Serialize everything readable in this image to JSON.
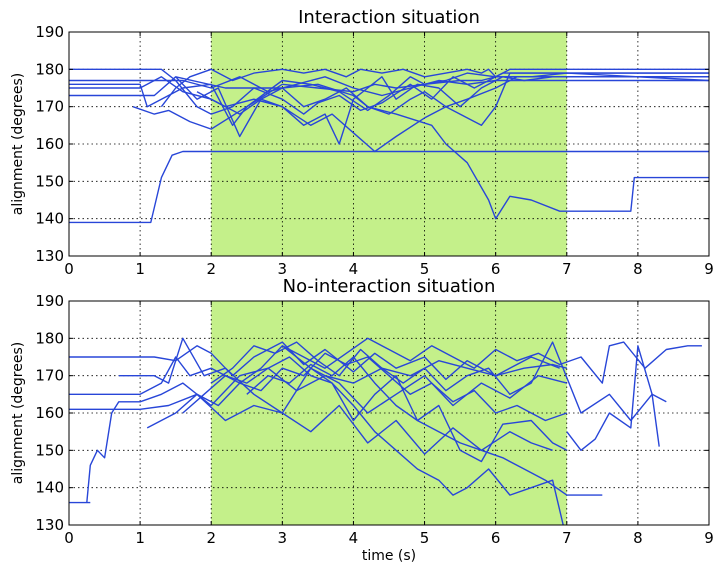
{
  "colors": {
    "band": "#c4f08a",
    "line": "#2846d8"
  },
  "chart_data": [
    {
      "type": "line",
      "title": "Interaction situation",
      "xlabel": "",
      "ylabel": "alignment (degrees)",
      "xlim": [
        0,
        9
      ],
      "ylim": [
        130,
        190
      ],
      "xticks": [
        0,
        1,
        2,
        3,
        4,
        5,
        6,
        7,
        8,
        9
      ],
      "yticks": [
        130,
        140,
        150,
        160,
        170,
        180,
        190
      ],
      "grid": true,
      "shaded_region": [
        2,
        7
      ],
      "series": [
        {
          "x": [
            0,
            1.15,
            1.3,
            1.45,
            1.6,
            2.0,
            9
          ],
          "y": [
            139,
            139,
            151,
            157,
            158,
            158,
            158
          ]
        },
        {
          "x": [
            0,
            1.2,
            1.5,
            2.2,
            3.0,
            3.5,
            4.0,
            4.2,
            4.6,
            5.1,
            5.3,
            5.6,
            5.9,
            6.0,
            6.2,
            6.5,
            6.9,
            7.9,
            7.95,
            9
          ],
          "y": [
            173,
            173,
            178,
            175,
            175,
            176,
            173,
            170,
            168,
            165,
            160,
            155,
            145,
            140,
            146,
            145,
            142,
            142,
            151,
            151
          ]
        },
        {
          "x": [
            0,
            1.0,
            1.1,
            1.3,
            1.6,
            2.0,
            2.3,
            2.5,
            3.0,
            3.5,
            4.0,
            4.3,
            4.6,
            5.0,
            5.5,
            5.8,
            6.0,
            9
          ],
          "y": [
            176,
            176,
            170,
            172,
            175,
            176,
            165,
            170,
            176,
            175,
            174,
            176,
            175,
            176,
            177,
            177,
            178,
            178
          ]
        },
        {
          "x": [
            0,
            1.0,
            1.3,
            1.6,
            2.0,
            2.4,
            2.7,
            3.0,
            3.3,
            3.6,
            3.9,
            4.2,
            4.5,
            4.8,
            5.0,
            5.3,
            5.6,
            5.8,
            6.0,
            6.2,
            9
          ],
          "y": [
            175,
            175,
            178,
            174,
            172,
            168,
            172,
            175,
            170,
            172,
            175,
            170,
            168,
            172,
            174,
            170,
            167,
            165,
            170,
            179,
            179
          ]
        },
        {
          "x": [
            0,
            1.3,
            1.5,
            1.8,
            2.0,
            2.3,
            2.6,
            3.0,
            3.3,
            3.5,
            3.8,
            4.1,
            4.4,
            4.8,
            5.1,
            5.4,
            5.7,
            6.0,
            6.2,
            9
          ],
          "y": [
            180,
            180,
            177,
            170,
            168,
            170,
            175,
            172,
            168,
            171,
            173,
            169,
            171,
            176,
            172,
            178,
            175,
            178,
            180,
            180
          ]
        },
        {
          "x": [
            0.9,
            1.2,
            1.4,
            1.7,
            2.0,
            2.5,
            3.0,
            3.4,
            3.8,
            4.2,
            4.5,
            4.8,
            5.0,
            5.3,
            5.6,
            6.0,
            6.5,
            7.0,
            9
          ],
          "y": [
            170,
            168,
            169,
            166,
            164,
            170,
            177,
            176,
            174,
            169,
            173,
            178,
            176,
            177,
            179,
            178,
            178,
            179,
            177
          ]
        },
        {
          "x": [
            1.3,
            1.5,
            1.7,
            2.0,
            2.3,
            2.6,
            3.0,
            3.3,
            3.6,
            3.9,
            4.1,
            4.4,
            4.7,
            5.0,
            5.3,
            5.6,
            5.8,
            5.9,
            6.0,
            6.1,
            9
          ],
          "y": [
            170,
            175,
            178,
            180,
            177,
            179,
            180,
            179,
            180,
            178,
            180,
            179,
            180,
            178,
            179,
            180,
            179,
            180,
            178,
            179,
            179
          ]
        },
        {
          "x": [
            1.5,
            1.8,
            2.1,
            2.4,
            2.7,
            3.0,
            3.3,
            3.6,
            3.8,
            4.0,
            4.2,
            4.4,
            4.6,
            4.9,
            5.2,
            5.5,
            5.8,
            6.1,
            6.4,
            6.8,
            9
          ],
          "y": [
            178,
            172,
            175,
            162,
            172,
            170,
            165,
            168,
            160,
            172,
            175,
            178,
            172,
            176,
            175,
            170,
            175,
            178,
            177,
            178,
            178
          ]
        },
        {
          "x": [
            0,
            1.6,
            2.0,
            2.4,
            2.8,
            3.2,
            3.6,
            4.0,
            4.4,
            4.8,
            5.2,
            5.6,
            6.0,
            9
          ],
          "y": [
            177,
            177,
            175,
            178,
            174,
            176,
            178,
            175,
            173,
            175,
            177,
            176,
            177,
            177
          ]
        },
        {
          "x": [
            1.8,
            2.2,
            2.6,
            3.0,
            3.4,
            3.7,
            4.0,
            4.3,
            4.6,
            5.0,
            5.3,
            5.6,
            6.0,
            6.3,
            9
          ],
          "y": [
            174,
            170,
            172,
            170,
            165,
            168,
            163,
            158,
            162,
            167,
            170,
            172,
            175,
            178,
            178
          ]
        }
      ]
    },
    {
      "type": "line",
      "title": "No-interaction situation",
      "xlabel": "time (s)",
      "ylabel": "alignment (degrees)",
      "xlim": [
        0,
        9
      ],
      "ylim": [
        130,
        190
      ],
      "xticks": [
        0,
        1,
        2,
        3,
        4,
        5,
        6,
        7,
        8,
        9
      ],
      "yticks": [
        130,
        140,
        150,
        160,
        170,
        180,
        190
      ],
      "grid": true,
      "shaded_region": [
        2,
        7
      ],
      "series": [
        {
          "x": [
            0.25,
            0.3,
            0.4,
            0.5,
            0.6,
            0.7,
            1.0,
            1.3,
            1.6,
            2.0,
            2.4,
            2.8,
            3.2,
            3.6,
            4.0,
            4.4,
            4.8,
            5.2,
            5.6,
            6.0,
            6.5,
            6.9
          ],
          "y": [
            136,
            146,
            150,
            148,
            160,
            163,
            163,
            165,
            168,
            162,
            170,
            172,
            166,
            170,
            168,
            172,
            170,
            174,
            172,
            170,
            175,
            172
          ]
        },
        {
          "x": [
            0,
            0.25,
            0.3
          ],
          "y": [
            136,
            136,
            136
          ]
        },
        {
          "x": [
            0,
            1.2,
            1.5,
            1.8,
            2.0,
            2.3,
            2.6,
            3.0,
            3.3,
            3.6,
            4.0,
            4.3,
            4.6,
            5.0,
            5.3,
            5.6,
            6.0,
            6.4,
            6.8,
            7.0
          ],
          "y": [
            175,
            175,
            174,
            178,
            176,
            170,
            175,
            179,
            173,
            177,
            171,
            176,
            172,
            175,
            169,
            174,
            170,
            172,
            173,
            172
          ]
        },
        {
          "x": [
            0,
            1.0,
            1.3,
            1.5,
            1.7,
            2.0,
            2.4,
            2.7,
            3.0,
            3.4,
            3.8,
            4.2,
            4.6,
            5.0,
            5.4,
            5.8,
            6.2,
            6.6,
            7.0
          ],
          "y": [
            165,
            165,
            168,
            175,
            170,
            172,
            168,
            172,
            178,
            172,
            168,
            160,
            165,
            170,
            162,
            168,
            164,
            170,
            168
          ]
        },
        {
          "x": [
            0,
            1.0,
            1.4,
            1.8,
            2.2,
            2.6,
            3.0,
            3.4,
            3.8,
            4.2,
            4.6,
            5.0,
            5.4,
            5.8,
            6.2,
            6.5,
            6.8
          ],
          "y": [
            161,
            161,
            162,
            165,
            158,
            162,
            160,
            155,
            162,
            152,
            158,
            149,
            156,
            150,
            155,
            152,
            150
          ]
        },
        {
          "x": [
            0.7,
            1.2,
            1.4,
            1.6,
            1.9,
            2.2,
            2.6,
            3.0,
            3.4,
            3.7,
            4.0,
            4.3,
            4.6,
            4.9,
            5.2,
            5.5,
            5.8,
            6.1,
            6.5,
            6.8,
            7.0
          ],
          "y": [
            170,
            170,
            168,
            180,
            170,
            172,
            165,
            160,
            172,
            168,
            158,
            165,
            170,
            158,
            162,
            150,
            147,
            157,
            158,
            152,
            150
          ]
        },
        {
          "x": [
            1.1,
            1.5,
            1.8,
            2.1,
            2.4,
            2.7,
            3.0,
            3.3,
            3.6,
            3.9,
            4.2,
            4.5,
            4.8,
            5.1,
            5.4,
            5.7,
            6.0,
            6.3,
            6.7,
            7.0
          ],
          "y": [
            156,
            160,
            165,
            162,
            168,
            166,
            172,
            170,
            176,
            173,
            175,
            170,
            165,
            168,
            163,
            166,
            160,
            162,
            158,
            160
          ]
        },
        {
          "x": [
            1.6,
            1.9,
            2.2,
            2.5,
            2.8,
            3.1,
            3.4,
            3.7,
            4.0,
            4.3,
            4.6,
            4.9,
            5.2,
            5.4,
            5.6,
            5.9,
            6.2,
            6.5,
            6.8,
            6.95
          ],
          "y": [
            160,
            165,
            170,
            168,
            172,
            175,
            170,
            168,
            162,
            155,
            150,
            145,
            142,
            138,
            140,
            145,
            138,
            140,
            142,
            130
          ]
        },
        {
          "x": [
            2.0,
            2.3,
            2.6,
            2.9,
            3.2,
            3.5,
            3.8,
            4.1,
            4.4,
            4.7,
            5.0,
            5.3,
            5.6,
            5.9,
            6.2,
            6.5,
            6.8,
            7.2,
            7.6,
            7.9,
            8.2,
            8.4
          ],
          "y": [
            168,
            172,
            178,
            176,
            179,
            174,
            170,
            177,
            172,
            168,
            172,
            166,
            170,
            172,
            165,
            168,
            179,
            160,
            165,
            158,
            165,
            163
          ]
        },
        {
          "x": [
            2.5,
            2.8,
            3.1,
            3.4,
            3.7,
            4.0,
            4.3,
            4.6,
            4.9,
            5.2,
            5.5,
            5.8,
            6.1,
            6.4,
            6.7,
            7.0,
            7.5
          ],
          "y": [
            165,
            170,
            168,
            173,
            170,
            175,
            168,
            162,
            158,
            155,
            152,
            150,
            148,
            145,
            142,
            138,
            138
          ]
        },
        {
          "x": [
            3.0,
            3.3,
            3.6,
            3.9,
            4.2,
            4.5,
            4.8,
            5.1,
            5.4,
            5.7,
            6.0,
            6.3,
            6.6,
            6.9,
            7.2,
            7.5,
            7.6,
            7.8,
            8.1,
            8.4,
            8.7,
            8.9
          ],
          "y": [
            178,
            175,
            172,
            176,
            180,
            177,
            174,
            178,
            175,
            172,
            177,
            174,
            176,
            173,
            175,
            168,
            178,
            179,
            172,
            177,
            178,
            178
          ]
        },
        {
          "x": [
            7.0,
            7.2,
            7.4,
            7.6,
            7.9,
            8.0,
            8.2,
            8.3
          ],
          "y": [
            155,
            150,
            153,
            160,
            156,
            178,
            165,
            151
          ]
        }
      ]
    }
  ]
}
